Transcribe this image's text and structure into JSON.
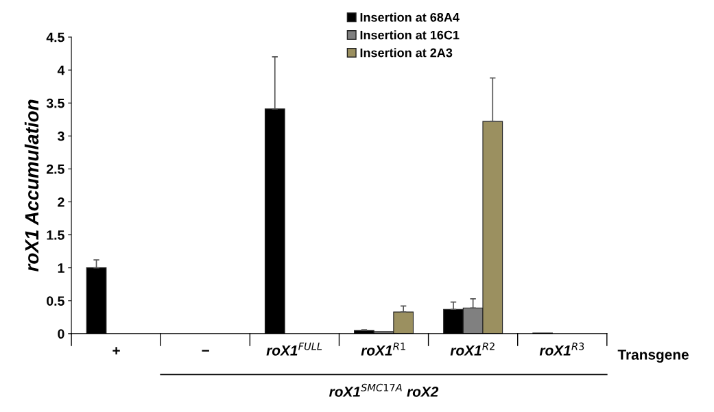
{
  "chart_data": {
    "type": "bar",
    "ylabel": "roX1 Accumulation",
    "categories": [
      "+",
      "−",
      "roX1$^{FULL}$",
      "roX1$^{R1}$",
      "roX1$^{R2}$",
      "roX1$^{R3}$"
    ],
    "series": [
      {
        "name": "Insertion at 68A4",
        "color": "#000000",
        "values": [
          1.0,
          null,
          3.41,
          0.05,
          0.37,
          0.01
        ],
        "errors": [
          [
            1.0,
            1.12
          ],
          null,
          [
            3.41,
            4.2
          ],
          [
            0.05,
            0.06
          ],
          [
            0.37,
            0.48
          ],
          null
        ]
      },
      {
        "name": "Insertion at 16C1",
        "color": "#808080",
        "values": [
          null,
          null,
          null,
          0.03,
          0.39,
          null
        ],
        "errors": [
          null,
          null,
          null,
          null,
          [
            0.39,
            0.53
          ],
          null
        ]
      },
      {
        "name": "Insertion at 2A3",
        "color": "#9b9060",
        "values": [
          null,
          null,
          null,
          0.33,
          3.22,
          null
        ],
        "errors": [
          null,
          null,
          null,
          [
            0.33,
            0.42
          ],
          [
            3.22,
            3.88
          ],
          null
        ]
      }
    ],
    "ylim": [
      0,
      4.5
    ],
    "yticks": [
      0,
      0.5,
      1,
      1.5,
      2,
      2.5,
      3,
      3.5,
      4,
      4.5
    ],
    "grid": false,
    "legend": "top",
    "annotations": [
      "Transgene",
      "roX1$^{SMC17A}$ roX2"
    ]
  }
}
